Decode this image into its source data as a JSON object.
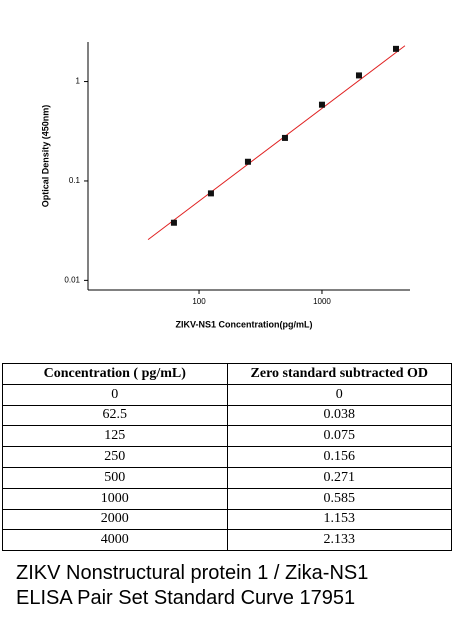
{
  "chart_data": {
    "type": "scatter",
    "x_label": "ZIKV-NS1 Concentration(pg/mL)",
    "y_label": "Optical Density (450nm)",
    "x": [
      62.5,
      125,
      250,
      500,
      1000,
      2000,
      4000
    ],
    "values": [
      0.038,
      0.075,
      0.156,
      0.271,
      0.585,
      1.153,
      2.133
    ],
    "color": "#111111",
    "fit_line": {
      "color": "#e02020",
      "x": [
        38.5,
        4730
      ],
      "y": [
        0.0257,
        2.29
      ]
    },
    "xscale": "log",
    "yscale": "log",
    "xlim": [
      12.5,
      5200
    ],
    "ylim": [
      0.008,
      2.5
    ],
    "xticks": [
      100,
      1000
    ],
    "yticks": [
      0.01,
      0.1,
      1
    ]
  },
  "table": {
    "header": [
      "Concentration ( pg/mL)",
      "Zero standard subtracted OD"
    ],
    "rows": [
      [
        "0",
        "0"
      ],
      [
        "62.5",
        "0.038"
      ],
      [
        "125",
        "0.075"
      ],
      [
        "250",
        "0.156"
      ],
      [
        "500",
        "0.271"
      ],
      [
        "1000",
        "0.585"
      ],
      [
        "2000",
        "1.153"
      ],
      [
        "4000",
        "2.133"
      ]
    ]
  },
  "caption": [
    "ZIKV Nonstructural protein 1 / Zika-NS1",
    "ELISA Pair Set Standard Curve 17951"
  ]
}
